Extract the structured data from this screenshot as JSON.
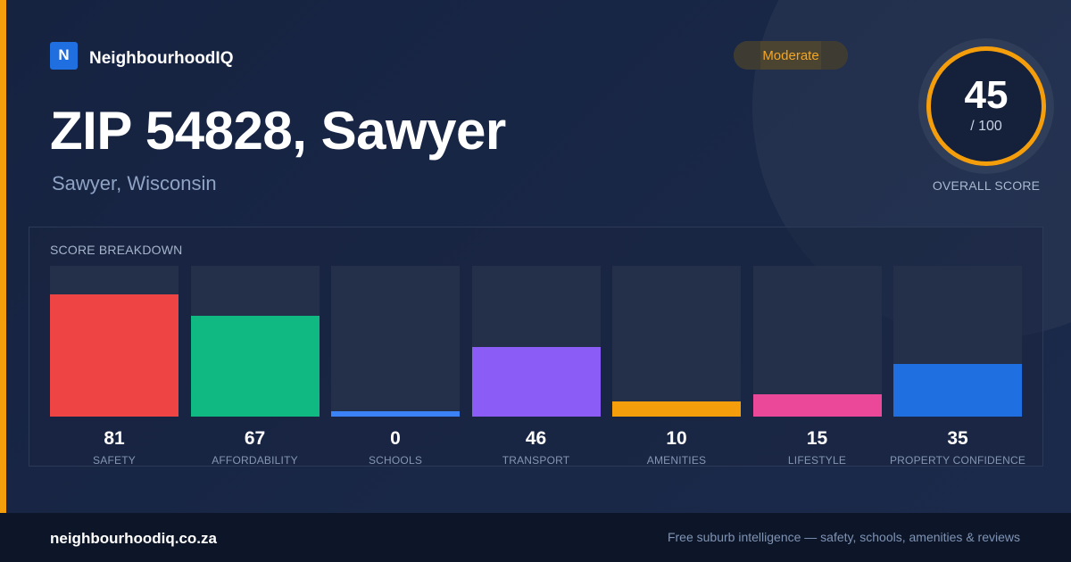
{
  "brand": {
    "logo_letter": "N",
    "name": "NeighbourhoodIQ"
  },
  "badge": {
    "label": "Moderate"
  },
  "header": {
    "title": "ZIP 54828, Sawyer",
    "subtitle": "Sawyer, Wisconsin"
  },
  "overall": {
    "score": "45",
    "max": "/ 100",
    "label": "OVERALL SCORE"
  },
  "breakdown": {
    "title": "SCORE BREAKDOWN"
  },
  "colors": {
    "accent": "#f59e0b",
    "background": "#172340",
    "track": "#243049"
  },
  "chart_data": {
    "type": "bar",
    "categories": [
      "SAFETY",
      "AFFORDABILITY",
      "SCHOOLS",
      "TRANSPORT",
      "AMENITIES",
      "LIFESTYLE",
      "PROPERTY CONFIDENCE"
    ],
    "values": [
      81,
      67,
      0,
      46,
      10,
      15,
      35
    ],
    "colors": [
      "#ef4444",
      "#10b981",
      "#3b82f6",
      "#8b5cf6",
      "#f59e0b",
      "#ec4899",
      "#1f6fe0"
    ],
    "ylim": [
      0,
      100
    ],
    "grid": false,
    "legend": "none"
  },
  "footer": {
    "site": "neighbourhoodiq.co.za",
    "tagline": "Free suburb intelligence — safety, schools, amenities & reviews"
  }
}
